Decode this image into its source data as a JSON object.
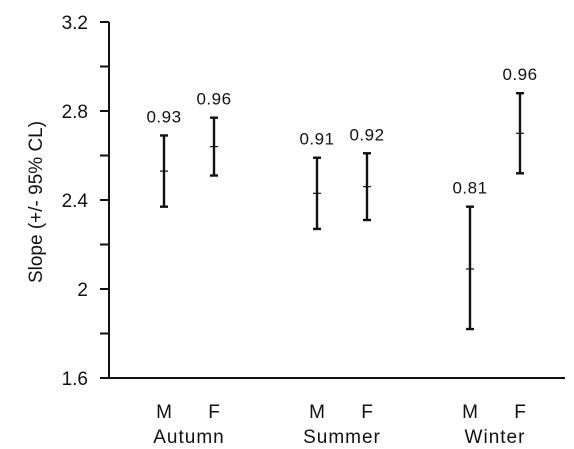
{
  "chart_data": {
    "type": "errorbar",
    "ylabel": "Slope (+/- 95% CL)",
    "ylim": [
      1.6,
      3.2
    ],
    "yticks_labeled": [
      "1.6",
      "2",
      "2.4",
      "2.8",
      "3.2"
    ],
    "yticks_labeled_values": [
      1.6,
      2.0,
      2.4,
      2.8,
      3.2
    ],
    "yticks_minor_values": [
      1.8,
      2.2,
      2.6,
      3.0
    ],
    "groups": [
      "Autumn",
      "Summer",
      "Winter"
    ],
    "categories": [
      "M",
      "F",
      "M",
      "F",
      "M",
      "F"
    ],
    "points": [
      {
        "group": "Autumn",
        "category": "M",
        "mean": 2.53,
        "lower": 2.37,
        "upper": 2.69,
        "label": "0.93"
      },
      {
        "group": "Autumn",
        "category": "F",
        "mean": 2.64,
        "lower": 2.51,
        "upper": 2.77,
        "label": "0.96"
      },
      {
        "group": "Summer",
        "category": "M",
        "mean": 2.43,
        "lower": 2.27,
        "upper": 2.59,
        "label": "0.91"
      },
      {
        "group": "Summer",
        "category": "F",
        "mean": 2.46,
        "lower": 2.31,
        "upper": 2.61,
        "label": "0.92"
      },
      {
        "group": "Winter",
        "category": "M",
        "mean": 2.09,
        "lower": 1.82,
        "upper": 2.37,
        "label": "0.81"
      },
      {
        "group": "Winter",
        "category": "F",
        "mean": 2.7,
        "lower": 2.52,
        "upper": 2.88,
        "label": "0.96"
      }
    ],
    "grid": false,
    "legend": "none"
  }
}
